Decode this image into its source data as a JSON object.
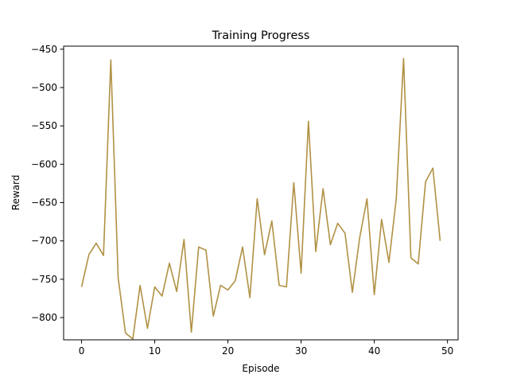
{
  "chart_data": {
    "type": "line",
    "title": "Training Progress",
    "xlabel": "Episode",
    "ylabel": "Reward",
    "xlim": [
      -2.45,
      51.45
    ],
    "ylim": [
      -829,
      -446
    ],
    "xticks": [
      0,
      10,
      20,
      30,
      40,
      50
    ],
    "xtick_labels": [
      "0",
      "10",
      "20",
      "30",
      "40",
      "50"
    ],
    "yticks": [
      -800,
      -750,
      -700,
      -650,
      -600,
      -550,
      -500,
      -450
    ],
    "ytick_labels": [
      "−800",
      "−750",
      "−700",
      "−650",
      "−600",
      "−550",
      "−500",
      "−450"
    ],
    "grid": false,
    "color": "#b09143",
    "series": [
      {
        "x": [
          0,
          1,
          2,
          3,
          4,
          5,
          6,
          7,
          8,
          9,
          10,
          11,
          12,
          13,
          14,
          15,
          16,
          17,
          18,
          19,
          20,
          21,
          22,
          23,
          24,
          25,
          26,
          27,
          28,
          29,
          30,
          31,
          32,
          33,
          34,
          35,
          36,
          37,
          38,
          39,
          40,
          41,
          42,
          43,
          44,
          45,
          46,
          47,
          48,
          49
        ],
        "values": [
          -760,
          -718,
          -703,
          -719,
          -464,
          -748,
          -820,
          -828,
          -758,
          -814,
          -760,
          -772,
          -729,
          -766,
          -698,
          -819,
          -708,
          -712,
          -798,
          -758,
          -764,
          -752,
          -708,
          -774,
          -645,
          -718,
          -674,
          -758,
          -760,
          -624,
          -742,
          -544,
          -714,
          -632,
          -705,
          -677,
          -690,
          -767,
          -696,
          -645,
          -770,
          -672,
          -728,
          -645,
          -462,
          -722,
          -730,
          -623,
          -605,
          -700
        ]
      }
    ]
  }
}
